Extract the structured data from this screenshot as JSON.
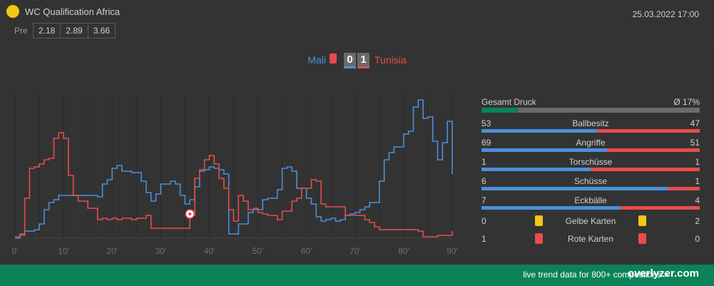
{
  "header": {
    "competition": "WC Qualification Africa",
    "datetime": "25.03.2022 17:00",
    "odds_label": "Pre",
    "odds": [
      "2.18",
      "2.89",
      "3.66"
    ]
  },
  "match": {
    "home_team": "Mali",
    "away_team": "Tunisia",
    "home_score": "0",
    "away_score": "1",
    "home_color": "#4a90d9",
    "away_color": "#e84c4c"
  },
  "chart_data": {
    "type": "line",
    "x_ticks": [
      "0'",
      "10'",
      "20'",
      "30'",
      "40'",
      "50'",
      "60'",
      "70'",
      "80'",
      "90'"
    ],
    "xlim": [
      0,
      90
    ],
    "ylim": [
      0,
      100
    ],
    "grid": "vertical",
    "series": [
      {
        "name": "Mali",
        "color": "#4a90d9",
        "points": [
          [
            0,
            0
          ],
          [
            1,
            3
          ],
          [
            2,
            5
          ],
          [
            4,
            6
          ],
          [
            5,
            10
          ],
          [
            6,
            20
          ],
          [
            7,
            25
          ],
          [
            8,
            27
          ],
          [
            9,
            30
          ],
          [
            10,
            30
          ],
          [
            12,
            30
          ],
          [
            14,
            30
          ],
          [
            15,
            30
          ],
          [
            16,
            30
          ],
          [
            17,
            29
          ],
          [
            18,
            38
          ],
          [
            19,
            41
          ],
          [
            20,
            49
          ],
          [
            21,
            51
          ],
          [
            22,
            47
          ],
          [
            23,
            47
          ],
          [
            24,
            46
          ],
          [
            25,
            46
          ],
          [
            26,
            40
          ],
          [
            27,
            32
          ],
          [
            28,
            26
          ],
          [
            29,
            31
          ],
          [
            30,
            38
          ],
          [
            31,
            38
          ],
          [
            32,
            40
          ],
          [
            33,
            38
          ],
          [
            34,
            30
          ],
          [
            35,
            24
          ],
          [
            36,
            27
          ],
          [
            37,
            36
          ],
          [
            38,
            47
          ],
          [
            39,
            48
          ],
          [
            40,
            50
          ],
          [
            41,
            49
          ],
          [
            42,
            48
          ],
          [
            43,
            45
          ],
          [
            44,
            3
          ],
          [
            45,
            3
          ],
          [
            46,
            10
          ],
          [
            47,
            10
          ],
          [
            48,
            18
          ],
          [
            49,
            20
          ],
          [
            50,
            20
          ],
          [
            51,
            27
          ],
          [
            52,
            28
          ],
          [
            53,
            28
          ],
          [
            54,
            34
          ],
          [
            55,
            49
          ],
          [
            56,
            50
          ],
          [
            57,
            47
          ],
          [
            58,
            35
          ],
          [
            59,
            35
          ],
          [
            60,
            28
          ],
          [
            61,
            24
          ],
          [
            62,
            15
          ],
          [
            63,
            12
          ],
          [
            64,
            13
          ],
          [
            65,
            14
          ],
          [
            66,
            12
          ],
          [
            67,
            13
          ],
          [
            68,
            16
          ],
          [
            69,
            17
          ],
          [
            70,
            18
          ],
          [
            71,
            20
          ],
          [
            72,
            22
          ],
          [
            73,
            25
          ],
          [
            74,
            25
          ],
          [
            75,
            40
          ],
          [
            76,
            55
          ],
          [
            77,
            60
          ],
          [
            78,
            64
          ],
          [
            79,
            64
          ],
          [
            80,
            73
          ],
          [
            81,
            75
          ],
          [
            82,
            92
          ],
          [
            83,
            97
          ],
          [
            84,
            84
          ],
          [
            85,
            85
          ],
          [
            86,
            68
          ],
          [
            87,
            55
          ],
          [
            88,
            67
          ],
          [
            89,
            82
          ],
          [
            90,
            45
          ]
        ]
      },
      {
        "name": "Tunisia",
        "color": "#e84c4c",
        "points": [
          [
            0,
            1
          ],
          [
            1,
            2
          ],
          [
            2,
            28
          ],
          [
            3,
            49
          ],
          [
            4,
            50
          ],
          [
            5,
            52
          ],
          [
            6,
            55
          ],
          [
            7,
            56
          ],
          [
            8,
            70
          ],
          [
            9,
            74
          ],
          [
            10,
            70
          ],
          [
            11,
            44
          ],
          [
            12,
            30
          ],
          [
            13,
            26
          ],
          [
            14,
            26
          ],
          [
            15,
            21
          ],
          [
            16,
            21
          ],
          [
            17,
            13
          ],
          [
            18,
            14
          ],
          [
            19,
            13
          ],
          [
            20,
            14
          ],
          [
            21,
            13
          ],
          [
            22,
            14
          ],
          [
            23,
            14
          ],
          [
            24,
            13
          ],
          [
            25,
            14
          ],
          [
            26,
            14
          ],
          [
            27,
            16
          ],
          [
            28,
            7
          ],
          [
            29,
            7
          ],
          [
            30,
            7
          ],
          [
            31,
            7
          ],
          [
            32,
            7
          ],
          [
            33,
            7
          ],
          [
            34,
            7
          ],
          [
            35,
            7
          ],
          [
            36,
            16
          ],
          [
            37,
            42
          ],
          [
            38,
            48
          ],
          [
            39,
            55
          ],
          [
            40,
            58
          ],
          [
            41,
            52
          ],
          [
            42,
            42
          ],
          [
            43,
            35
          ],
          [
            44,
            20
          ],
          [
            45,
            12
          ],
          [
            46,
            30
          ],
          [
            47,
            26
          ],
          [
            48,
            20
          ],
          [
            49,
            21
          ],
          [
            50,
            18
          ],
          [
            51,
            17
          ],
          [
            52,
            16
          ],
          [
            53,
            16
          ],
          [
            54,
            13
          ],
          [
            55,
            19
          ],
          [
            56,
            19
          ],
          [
            57,
            26
          ],
          [
            58,
            28
          ],
          [
            59,
            35
          ],
          [
            60,
            35
          ],
          [
            61,
            41
          ],
          [
            62,
            40
          ],
          [
            63,
            24
          ],
          [
            64,
            22
          ],
          [
            65,
            22
          ],
          [
            66,
            22
          ],
          [
            67,
            22
          ],
          [
            68,
            16
          ],
          [
            69,
            16
          ],
          [
            70,
            16
          ],
          [
            71,
            16
          ],
          [
            72,
            13
          ],
          [
            73,
            11
          ],
          [
            74,
            8
          ],
          [
            75,
            6
          ],
          [
            76,
            6
          ],
          [
            77,
            6
          ],
          [
            78,
            6
          ],
          [
            79,
            6
          ],
          [
            80,
            6
          ],
          [
            81,
            6
          ],
          [
            82,
            6
          ],
          [
            83,
            5
          ],
          [
            84,
            1
          ],
          [
            85,
            1
          ],
          [
            86,
            1
          ],
          [
            87,
            2
          ],
          [
            88,
            2
          ],
          [
            89,
            2
          ],
          [
            90,
            5
          ]
        ]
      }
    ],
    "annotations": [
      {
        "type": "goal-icon",
        "minute": 36,
        "team": "Tunisia"
      }
    ]
  },
  "stats": {
    "pressure": {
      "label": "Gesamt Druck",
      "value": "Ø 17%",
      "fraction": 0.17,
      "color": "#0c8259"
    },
    "rows": [
      {
        "label": "Ballbesitz",
        "home": "53",
        "away": "47",
        "home_value": 53,
        "away_value": 47
      },
      {
        "label": "Angriffe",
        "home": "69",
        "away": "51",
        "home_value": 69,
        "away_value": 51
      },
      {
        "label": "Torschüsse",
        "home": "1",
        "away": "1",
        "home_value": 1,
        "away_value": 1
      },
      {
        "label": "Schüsse",
        "home": "6",
        "away": "1",
        "home_value": 6,
        "away_value": 1
      },
      {
        "label": "Eckbälle",
        "home": "7",
        "away": "4",
        "home_value": 7,
        "away_value": 4
      }
    ],
    "cards": [
      {
        "label": "Gelbe Karten",
        "home": "0",
        "away": "2",
        "color": "#f5c518"
      },
      {
        "label": "Rote Karten",
        "home": "1",
        "away": "0",
        "color": "#e84c4c"
      }
    ]
  },
  "footer": {
    "text": "live trend data for 800+ competitions »",
    "brand": "overlyzer.com"
  }
}
